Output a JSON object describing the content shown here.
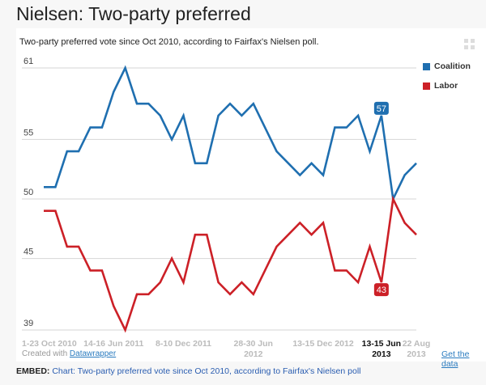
{
  "page": {
    "title": "Nielsen: Two-party preferred",
    "credit_prefix": "Created with",
    "credit_link": "Datawrapper",
    "get_data": "Get the data",
    "embed_label": "EMBED:",
    "embed_text": "Chart: Two-party preferred vote since Oct 2010, according to Fairfax's Nielsen poll",
    "expand_icon": "expand-icon"
  },
  "chart_data": {
    "type": "line",
    "title": "Nielsen: Two-party preferred",
    "subtitle": "Two-party preferred vote since Oct 2010, according to Fairfax's Nielsen poll.",
    "xlabel": "",
    "ylabel": "",
    "ylim": [
      39,
      61
    ],
    "yticks": [
      39,
      45,
      50,
      55,
      61
    ],
    "grid": true,
    "legend_position": "right",
    "x_tick_labels": [
      {
        "index": 0,
        "line1": "1-23 Oct 2010",
        "line2": "",
        "highlight": false
      },
      {
        "index": 6,
        "line1": "14-16 Jun 2011",
        "line2": "",
        "highlight": false
      },
      {
        "index": 12,
        "line1": "8-10 Dec 2011",
        "line2": "",
        "highlight": false
      },
      {
        "index": 18,
        "line1": "28-30 Jun",
        "line2": "2012",
        "highlight": false
      },
      {
        "index": 24,
        "line1": "13-15 Dec 2012",
        "line2": "",
        "highlight": false
      },
      {
        "index": 29,
        "line1": "13-15 Jun",
        "line2": "2013",
        "highlight": true
      },
      {
        "index": 32,
        "line1": "22 Aug",
        "line2": "2013",
        "highlight": false
      }
    ],
    "series": [
      {
        "name": "Coalition",
        "color": "#1f6fb0",
        "values": [
          51,
          51,
          54,
          54,
          56,
          56,
          59,
          61,
          58,
          58,
          57,
          55,
          57,
          53,
          53,
          57,
          58,
          57,
          58,
          56,
          54,
          53,
          52,
          53,
          52,
          56,
          56,
          57,
          54,
          57,
          50,
          52,
          53
        ]
      },
      {
        "name": "Labor",
        "color": "#cc2027",
        "values": [
          49,
          49,
          46,
          46,
          44,
          44,
          41,
          39,
          42,
          42,
          43,
          45,
          43,
          47,
          47,
          43,
          42,
          43,
          42,
          44,
          46,
          47,
          48,
          47,
          48,
          44,
          44,
          43,
          46,
          43,
          50,
          48,
          47
        ]
      }
    ],
    "annotations": [
      {
        "series": "Coalition",
        "index": 29,
        "label": "57"
      },
      {
        "series": "Labor",
        "index": 29,
        "label": "43"
      }
    ]
  }
}
